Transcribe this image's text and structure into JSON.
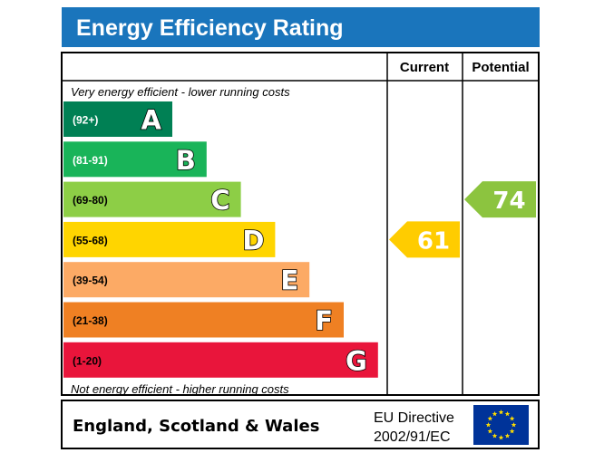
{
  "title": "Energy Efficiency Rating",
  "columns": {
    "current": "Current",
    "potential": "Potential"
  },
  "top_note": "Very energy efficient - lower running costs",
  "bottom_note": "Not energy efficient - higher running costs",
  "footer": {
    "region": "England, Scotland & Wales",
    "directive_line1": "EU Directive",
    "directive_line2": "2002/91/EC"
  },
  "colors": {
    "title_bar": "#1a75bc",
    "current_arrow": "#ffcc00",
    "potential_arrow": "#8cc43f",
    "eu_flag": "#003399",
    "eu_stars": "#ffdd00"
  },
  "chart_data": {
    "type": "bar",
    "categories": [
      "A",
      "B",
      "C",
      "D",
      "E",
      "F",
      "G"
    ],
    "ranges": [
      "(92+)",
      "(81-91)",
      "(69-80)",
      "(55-68)",
      "(39-54)",
      "(21-38)",
      "(1-20)"
    ],
    "band_min": [
      92,
      81,
      69,
      55,
      39,
      21,
      1
    ],
    "colors": [
      "#008054",
      "#19b459",
      "#8dce46",
      "#ffd500",
      "#fcaa65",
      "#ef8023",
      "#e9153b"
    ],
    "current": {
      "value": 61,
      "band": "D"
    },
    "potential": {
      "value": 74,
      "band": "C"
    }
  }
}
